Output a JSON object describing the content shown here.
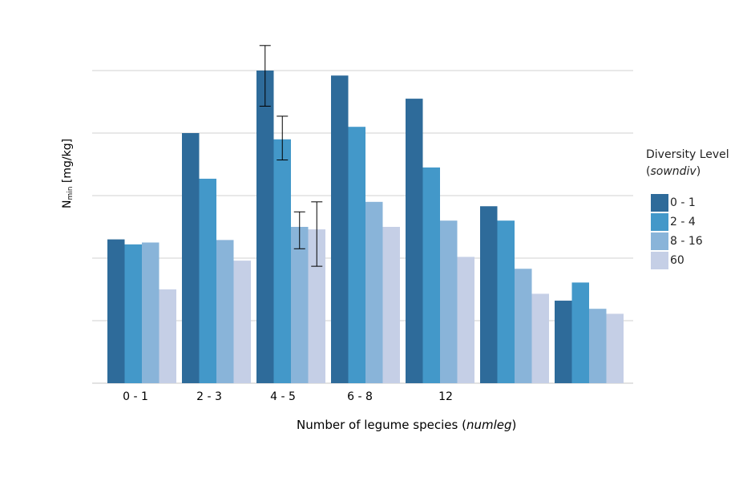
{
  "chart_data": {
    "type": "bar",
    "categories": [
      "0 - 1",
      "2 - 3",
      "4 - 5",
      "6 - 8",
      "12",
      "",
      ""
    ],
    "series": [
      {
        "name": "0 - 1",
        "color": "#2e6b9a",
        "values": [
          2.3,
          4.0,
          5.0,
          4.92,
          4.55,
          2.83,
          1.32
        ]
      },
      {
        "name": "2 - 4",
        "color": "#4398c9",
        "values": [
          2.22,
          3.27,
          3.9,
          4.1,
          3.45,
          2.6,
          1.61
        ]
      },
      {
        "name": "8 - 16",
        "color": "#89b4d9",
        "values": [
          2.25,
          2.29,
          2.5,
          2.9,
          2.6,
          1.83,
          1.19
        ]
      },
      {
        "name": "60",
        "color": "#c5cfe6",
        "values": [
          1.5,
          1.96,
          2.46,
          2.5,
          2.02,
          1.43,
          1.11
        ]
      }
    ],
    "error_bars": [
      {
        "category_index": 2,
        "series_index": 0,
        "low": 4.43,
        "high": 5.4
      },
      {
        "category_index": 2,
        "series_index": 1,
        "low": 3.57,
        "high": 4.27
      },
      {
        "category_index": 2,
        "series_index": 2,
        "low": 2.15,
        "high": 2.74
      },
      {
        "category_index": 2,
        "series_index": 3,
        "low": 1.87,
        "high": 2.9
      }
    ],
    "ylim": [
      0,
      5.5
    ],
    "y_gridlines": [
      0,
      1,
      2,
      3,
      4,
      5
    ],
    "ytick_labels_shown": false,
    "grid": true,
    "legend_position": "right"
  },
  "axis": {
    "xlabel_main": "Number of legume species (",
    "xlabel_var": "numleg",
    "xlabel_end": ")",
    "ylabel_main": "N",
    "ylabel_sub": "min",
    "ylabel_unit": " [mg/kg]"
  },
  "legend": {
    "title_main": "Diversity Level",
    "title_open": "(",
    "title_var": "sowndiv",
    "title_close": ")"
  }
}
